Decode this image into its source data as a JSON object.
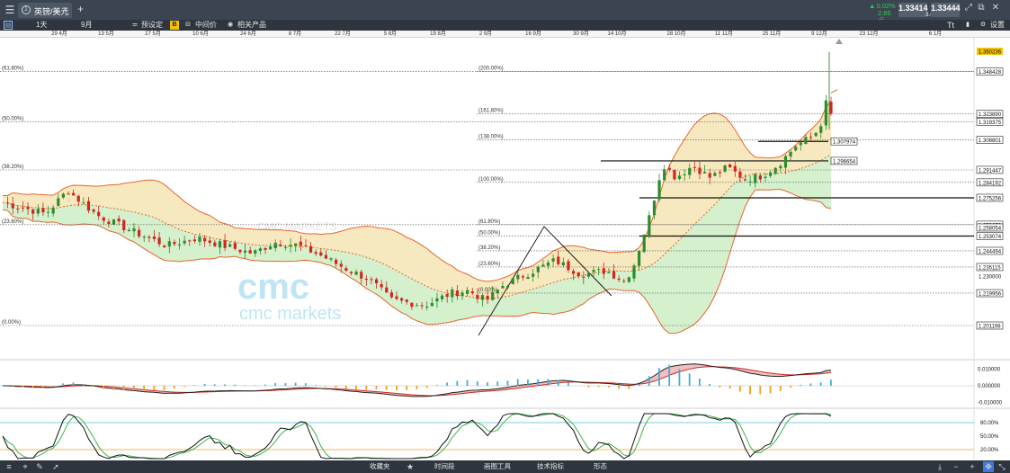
{
  "tab": {
    "number": "1",
    "title": "英镑/美元",
    "close": "×"
  },
  "add_tab": "+",
  "quote": {
    "change_pct": "0.02%",
    "change_pts": "2.85点",
    "sell": "1.33414",
    "buy": "1.33444",
    "spread": "3.0"
  },
  "toolbar": {
    "timeframe": "1天",
    "range": "9月",
    "preset": "预设定",
    "mid_price": "中间价",
    "related": "相关产品",
    "settings": "设置",
    "b_badge": "B",
    "text_tool": "Tt"
  },
  "date_axis": [
    "29 4月",
    "13 5月",
    "27 5月",
    "10 6月",
    "24 6月",
    "8 7月",
    "22 7月",
    "5 8月",
    "19 8月",
    "2 9月",
    "16 9月",
    "30 9月",
    "14 10月",
    "28 10月",
    "11 11月",
    "25 11月",
    "9 12月",
    "23 12月",
    "6 1月"
  ],
  "watermark": {
    "logo": "cmc",
    "text": "cmc markets",
    "small": "CMC MARKETS"
  },
  "bottom_bar": {
    "favorites": "收藏夹",
    "time_period": "时间段",
    "drawing_tools": "画图工具",
    "indicators": "技术指标",
    "patterns": "形态"
  },
  "chart_data": [
    {
      "type": "candlestick",
      "title": "",
      "overlays": [
        "bollinger_bands",
        "fibonacci_retracement",
        "horizontal_lines",
        "trend_lines"
      ],
      "price_axis_labels": [
        "1.360236",
        "1.348428",
        "1.323890",
        "1.319375",
        "1.308801",
        "1.307974",
        "1.296654",
        "1.291447",
        "1.284192",
        "1.275256",
        "1.259653",
        "1.258054",
        "1.253074",
        "1.244494",
        "1.235115",
        "1.230000",
        "1.219956",
        "1.201198"
      ],
      "current_price_tag": "1.360236",
      "fib_left": [
        {
          "label": "(61.80%)",
          "price": 1.3484
        },
        {
          "label": "(50.00%)",
          "price": 1.3194
        },
        {
          "label": "(38.20%)",
          "price": 1.2914
        },
        {
          "label": "(23.60%)",
          "price": 1.2597
        },
        {
          "label": "(0.00%)",
          "price": 1.2012
        }
      ],
      "fib_right": [
        {
          "label": "(200.00%)",
          "price": 1.3484
        },
        {
          "label": "(161.80%)",
          "price": 1.3239
        },
        {
          "label": "(138.00%)",
          "price": 1.3088
        },
        {
          "label": "(100.00%)",
          "price": 1.2842
        },
        {
          "label": "(61.80%)",
          "price": 1.2597
        },
        {
          "label": "(50.00%)",
          "price": 1.2531
        },
        {
          "label": "(38.20%)",
          "price": 1.2445
        },
        {
          "label": "(23.60%)",
          "price": 1.2351
        },
        {
          "label": "(0.00%)",
          "price": 1.22
        }
      ],
      "horizontal_lines": [
        {
          "price": 1.307974,
          "from": 843,
          "to": 921
        },
        {
          "price": 1.296654,
          "from": 668,
          "to": 921
        },
        {
          "price": 1.275256,
          "from": 711,
          "to": 1083
        },
        {
          "price": 1.253074,
          "from": 711,
          "to": 1083
        }
      ],
      "ylim": [
        1.195,
        1.365
      ]
    },
    {
      "type": "macd",
      "axis_labels": [
        "0.010000",
        "0.000000",
        "-0.010000"
      ],
      "ylim": [
        -0.012,
        0.012
      ]
    },
    {
      "type": "stochastic",
      "axis_labels": [
        "80.00%",
        "50.00%",
        "20.00%"
      ],
      "levels": [
        80,
        20
      ],
      "ylim": [
        0,
        100
      ]
    }
  ],
  "colors": {
    "up": "#2e8b2e",
    "down": "#d0261e",
    "band": "#e8652a",
    "band_fill_up": "#cfeec8",
    "band_fill_down": "#f6e7b8",
    "macd_signal": "#d0261e",
    "macd_line": "#222222",
    "hist_pos": "#3aaee0",
    "hist_neg": "#f0a020",
    "stoch_k": "#111111",
    "stoch_d": "#3cb44b",
    "level80": "#4fc3d8",
    "level20": "#f0a020"
  }
}
